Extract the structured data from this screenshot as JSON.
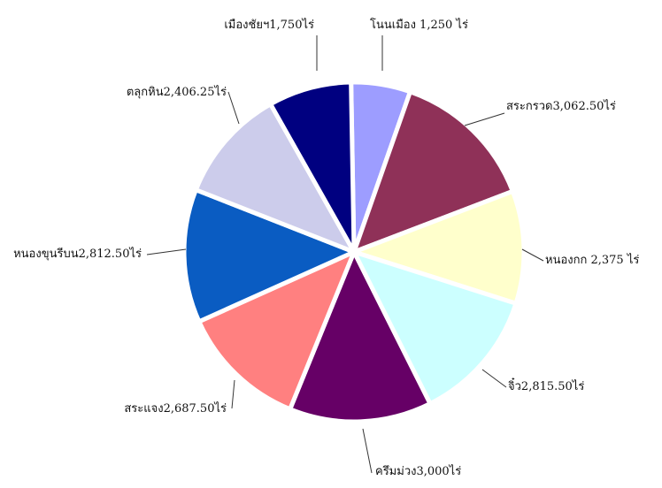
{
  "chart_data": {
    "type": "pie",
    "title": "",
    "legend": "none",
    "slices": [
      {
        "label": "โนนเมือง 1,250 ไร่",
        "value": 1250,
        "color": "#9d9dff"
      },
      {
        "label": "สระกรวด3,062.50ไร่",
        "value": 3062.5,
        "color": "#8f3158"
      },
      {
        "label": "หนองกก 2,375 ไร่",
        "value": 2375,
        "color": "#ffffcc"
      },
      {
        "label": "จิ๋ว2,815.50ไร่",
        "value": 2815.5,
        "color": "#ccffff"
      },
      {
        "label": "ครึมม่วง3,000ไร่",
        "value": 3000,
        "color": "#660066"
      },
      {
        "label": "สระแจง2,687.50ไร่",
        "value": 2687.5,
        "color": "#ff8080"
      },
      {
        "label": "หนองขุนรีบน2,812.50ไร่",
        "value": 2812.5,
        "color": "#0a5cc2"
      },
      {
        "label": "ตลุกหิน2,406.25ไร่",
        "value": 2406.25,
        "color": "#cccceb"
      },
      {
        "label": "เมืองชัยฯ1,750ไร่",
        "value": 1750,
        "color": "#000080"
      }
    ]
  }
}
